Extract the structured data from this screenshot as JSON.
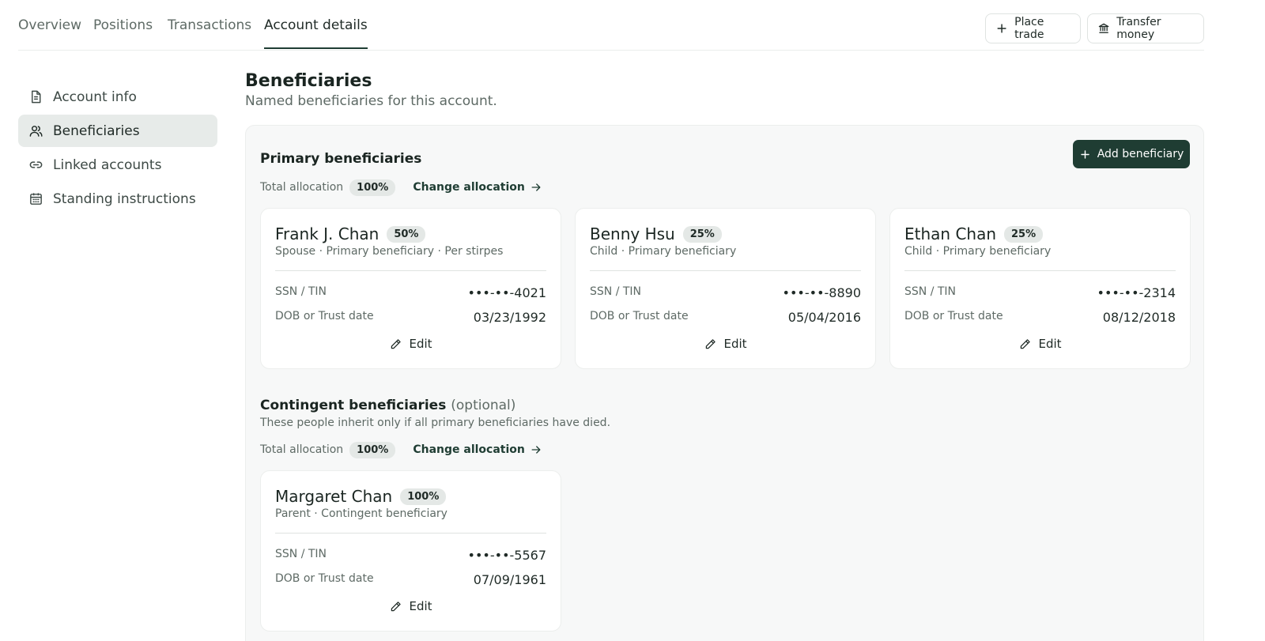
{
  "tabs": [
    {
      "label": "Overview"
    },
    {
      "label": "Positions"
    },
    {
      "label": "Transactions"
    },
    {
      "label": "Account details",
      "active": true
    }
  ],
  "actions": {
    "place_trade": "Place trade",
    "transfer_money": "Transfer money"
  },
  "sidebar": {
    "items": [
      {
        "label": "Account info",
        "icon": "document-icon"
      },
      {
        "label": "Beneficiaries",
        "icon": "users-icon",
        "active": true
      },
      {
        "label": "Linked accounts",
        "icon": "link-icon"
      },
      {
        "label": "Standing instructions",
        "icon": "calendar-icon"
      }
    ]
  },
  "page": {
    "title": "Beneficiaries",
    "subtitle": "Named beneficiaries for this account."
  },
  "primary": {
    "title": "Primary beneficiaries",
    "add_label": "Add beneficiary",
    "total_label": "Total allocation",
    "total_value": "100%",
    "change_label": "Change allocation",
    "cards": [
      {
        "name": "Frank J. Chan",
        "pct": "50%",
        "meta": "Spouse · Primary beneficiary · Per stirpes",
        "ssn_label": "SSN / TIN",
        "ssn": "•••-••-4021",
        "dob_label": "DOB or Trust date",
        "dob": "03/23/1992",
        "edit": "Edit"
      },
      {
        "name": "Benny Hsu",
        "pct": "25%",
        "meta": "Child · Primary beneficiary",
        "ssn_label": "SSN / TIN",
        "ssn": "•••-••-8890",
        "dob_label": "DOB or Trust date",
        "dob": "05/04/2016",
        "edit": "Edit"
      },
      {
        "name": "Ethan Chan",
        "pct": "25%",
        "meta": "Child · Primary beneficiary",
        "ssn_label": "SSN / TIN",
        "ssn": "•••-••-2314",
        "dob_label": "DOB or Trust date",
        "dob": "08/12/2018",
        "edit": "Edit"
      }
    ]
  },
  "contingent": {
    "title": "Contingent beneficiaries",
    "optional": "(optional)",
    "note": "These people inherit only if all primary beneficiaries have died.",
    "total_label": "Total allocation",
    "total_value": "100%",
    "change_label": "Change allocation",
    "cards": [
      {
        "name": "Margaret Chan",
        "pct": "100%",
        "meta": "Parent · Contingent beneficiary",
        "ssn_label": "SSN / TIN",
        "ssn": "•••-••-5567",
        "dob_label": "DOB or Trust date",
        "dob": "07/09/1961",
        "edit": "Edit"
      }
    ]
  }
}
